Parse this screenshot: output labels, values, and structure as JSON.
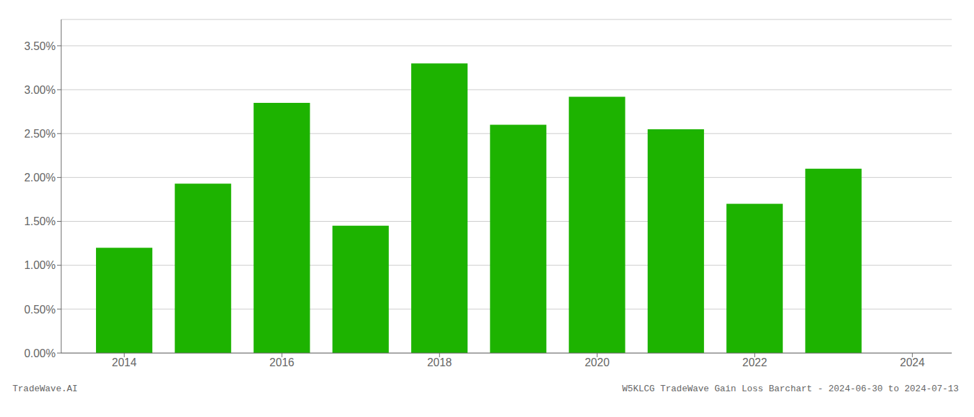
{
  "chart_data": {
    "type": "bar",
    "x": [
      2014,
      2015,
      2016,
      2017,
      2018,
      2019,
      2020,
      2021,
      2022,
      2023
    ],
    "values": [
      0.012,
      0.0193,
      0.0285,
      0.0145,
      0.033,
      0.026,
      0.0292,
      0.0255,
      0.017,
      0.021
    ],
    "color": "#1db300",
    "xlim": [
      2013.2,
      2024.5
    ],
    "xticks": [
      2014,
      2016,
      2018,
      2020,
      2022,
      2024
    ],
    "ylim": [
      0,
      0.038
    ],
    "yticks": [
      {
        "value": 0.0,
        "label": "0.00%"
      },
      {
        "value": 0.005,
        "label": "0.50%"
      },
      {
        "value": 0.01,
        "label": "1.00%"
      },
      {
        "value": 0.015,
        "label": "1.50%"
      },
      {
        "value": 0.02,
        "label": "2.00%"
      },
      {
        "value": 0.025,
        "label": "2.50%"
      },
      {
        "value": 0.03,
        "label": "3.00%"
      },
      {
        "value": 0.035,
        "label": "3.50%"
      }
    ],
    "grid": true,
    "annotations": [
      "TradeWave.AI",
      "W5KLCG TradeWave Gain Loss Barchart - 2024-06-30 to 2024-07-13"
    ]
  }
}
